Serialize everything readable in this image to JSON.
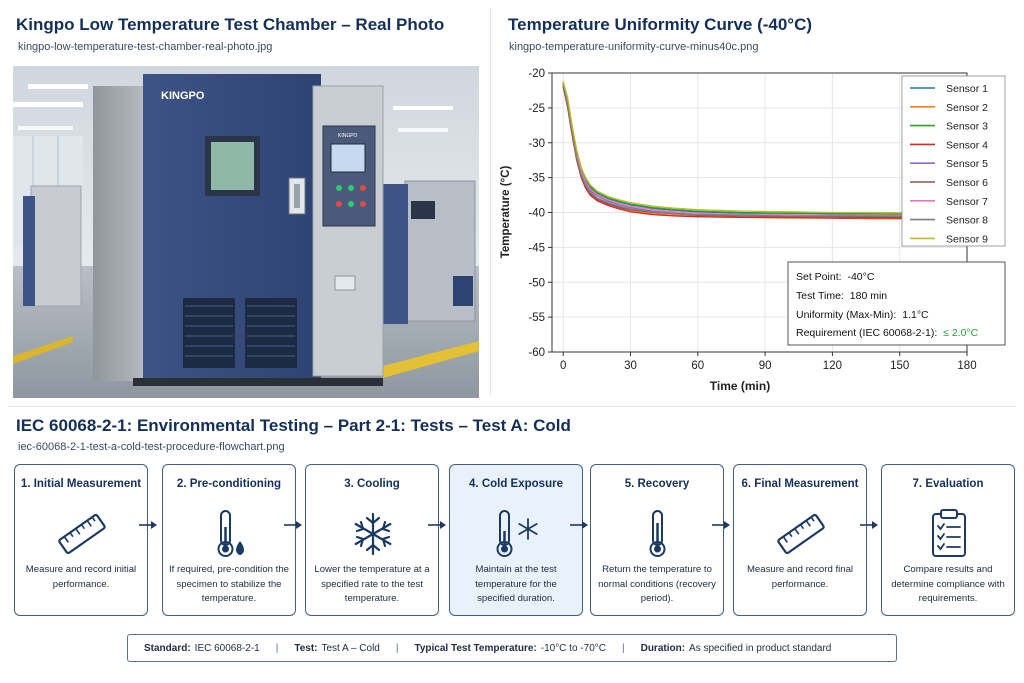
{
  "photo_panel": {
    "title": "Kingpo Low Temperature Test Chamber – Real Photo",
    "filename": "kingpo-low-temperature-test-chamber-real-photo.jpg",
    "brand_label": "KINGPO",
    "control_brand": "KINGPO"
  },
  "chart_panel": {
    "title": "Temperature Uniformity Curve (-40°C)",
    "filename": "kingpo-temperature-uniformity-curve-minus40c.png"
  },
  "chart_data": {
    "type": "line",
    "xlabel": "Time (min)",
    "ylabel": "Temperature (°C)",
    "xlim": [
      -5,
      180
    ],
    "ylim": [
      -60,
      -20
    ],
    "xticks": [
      0,
      30,
      60,
      90,
      120,
      150,
      180
    ],
    "yticks": [
      -20,
      -25,
      -30,
      -35,
      -40,
      -45,
      -50,
      -55,
      -60
    ],
    "grid": true,
    "legend_position": "top-right",
    "x": [
      0,
      2,
      4,
      6,
      8,
      10,
      12,
      15,
      20,
      25,
      30,
      40,
      50,
      60,
      80,
      100,
      120,
      140,
      160,
      172
    ],
    "series": [
      {
        "name": "Sensor 1",
        "color": "#1f77b4",
        "values": [
          -21.5,
          -24,
          -28,
          -31.5,
          -34,
          -35.5,
          -36.4,
          -37.2,
          -38,
          -38.5,
          -38.9,
          -39.4,
          -39.7,
          -39.9,
          -40.1,
          -40.1,
          -40.2,
          -40.2,
          -40.3,
          -40.3
        ]
      },
      {
        "name": "Sensor 2",
        "color": "#ff7f0e",
        "values": [
          -21.8,
          -24.5,
          -28.5,
          -32,
          -34.5,
          -36,
          -37,
          -37.9,
          -38.7,
          -39.3,
          -39.7,
          -40.2,
          -40.4,
          -40.6,
          -40.7,
          -40.8,
          -40.8,
          -40.9,
          -40.9,
          -40.9
        ]
      },
      {
        "name": "Sensor 3",
        "color": "#2ca02c",
        "values": [
          -21.3,
          -23.8,
          -27.8,
          -31.2,
          -33.7,
          -35.2,
          -36.2,
          -37.1,
          -37.9,
          -38.4,
          -38.8,
          -39.3,
          -39.6,
          -39.8,
          -40,
          -40.1,
          -40.1,
          -40.2,
          -40.2,
          -40.2
        ]
      },
      {
        "name": "Sensor 4",
        "color": "#d62728",
        "values": [
          -22,
          -25,
          -29,
          -32.5,
          -35,
          -36.5,
          -37.5,
          -38.3,
          -39,
          -39.5,
          -39.9,
          -40.3,
          -40.5,
          -40.6,
          -40.7,
          -40.7,
          -40.8,
          -40.8,
          -40.8,
          -40.8
        ]
      },
      {
        "name": "Sensor 5",
        "color": "#9467bd",
        "values": [
          -21.6,
          -24.3,
          -28.3,
          -31.8,
          -34.3,
          -35.8,
          -36.8,
          -37.6,
          -38.4,
          -38.9,
          -39.3,
          -39.8,
          -40.1,
          -40.3,
          -40.4,
          -40.5,
          -40.5,
          -40.6,
          -40.6,
          -40.6
        ]
      },
      {
        "name": "Sensor 6",
        "color": "#8c564b",
        "values": [
          -21.9,
          -24.8,
          -28.8,
          -32.3,
          -34.8,
          -36.3,
          -37.3,
          -38.1,
          -38.8,
          -39.3,
          -39.6,
          -40,
          -40.2,
          -40.4,
          -40.5,
          -40.6,
          -40.6,
          -40.7,
          -40.7,
          -40.7
        ]
      },
      {
        "name": "Sensor 7",
        "color": "#e377c2",
        "values": [
          -21.4,
          -24.1,
          -28.1,
          -31.6,
          -34.1,
          -35.6,
          -36.6,
          -37.4,
          -38.2,
          -38.7,
          -39.1,
          -39.6,
          -39.9,
          -40.1,
          -40.3,
          -40.3,
          -40.4,
          -40.4,
          -40.4,
          -40.4
        ]
      },
      {
        "name": "Sensor 8",
        "color": "#7f7f7f",
        "values": [
          -21.7,
          -24.6,
          -28.6,
          -32.1,
          -34.6,
          -36.1,
          -37.1,
          -37.9,
          -38.6,
          -39.1,
          -39.5,
          -39.9,
          -40.2,
          -40.3,
          -40.4,
          -40.5,
          -40.5,
          -40.5,
          -40.6,
          -40.6
        ]
      },
      {
        "name": "Sensor 9",
        "color": "#bcbd22",
        "values": [
          -21.2,
          -23.6,
          -27.6,
          -31,
          -33.5,
          -35,
          -36,
          -36.9,
          -37.7,
          -38.2,
          -38.6,
          -39.1,
          -39.4,
          -39.6,
          -39.8,
          -39.9,
          -40,
          -40,
          -40.1,
          -40.1
        ]
      }
    ],
    "annotation": {
      "set_point_label": "Set Point:",
      "set_point_value": "-40°C",
      "test_time_label": "Test Time:",
      "test_time_value": "180 min",
      "uniformity_label": "Uniformity (Max-Min):",
      "uniformity_value": "1.1°C",
      "requirement_label": "Requirement (IEC 60068-2-1):",
      "requirement_value": "≤ 2.0°C",
      "requirement_color": "#2a9d3a"
    }
  },
  "flow_panel": {
    "title": "IEC 60068-2-1: Environmental Testing – Part 2-1: Tests – Test A: Cold",
    "filename": "iec-60068-2-1-test-a-cold-test-procedure-flowchart.png",
    "steps": [
      {
        "title": "1. Initial Measurement",
        "icon": "ruler-icon",
        "description": "Measure and record initial performance."
      },
      {
        "title": "2. Pre-conditioning",
        "icon": "thermometer-drop-icon",
        "description": "If required, pre-condition the specimen to stabilize the temperature."
      },
      {
        "title": "3. Cooling",
        "icon": "snowflake-icon",
        "description": "Lower the temperature at a specified rate to the test temperature."
      },
      {
        "title": "4. Cold Exposure",
        "icon": "thermometer-snowflake-icon",
        "description": "Maintain at the test temperature for the specified duration."
      },
      {
        "title": "5. Recovery",
        "icon": "thermometer-icon",
        "description": "Return the temperature to normal conditions (recovery period)."
      },
      {
        "title": "6. Final Measurement",
        "icon": "ruler-icon",
        "description": "Measure and record final performance."
      },
      {
        "title": "7. Evaluation",
        "icon": "clipboard-checklist-icon",
        "description": "Compare results and determine compliance with requirements."
      }
    ],
    "highlight_color": "#e9f1fb"
  },
  "info_bar": {
    "standard_label": "Standard:",
    "standard_value": "IEC 60068-2-1",
    "test_label": "Test:",
    "test_value": "Test A – Cold",
    "temp_label": "Typical Test Temperature:",
    "temp_value": "-10°C to -70°C",
    "duration_label": "Duration:",
    "duration_value": "As specified in product standard"
  }
}
